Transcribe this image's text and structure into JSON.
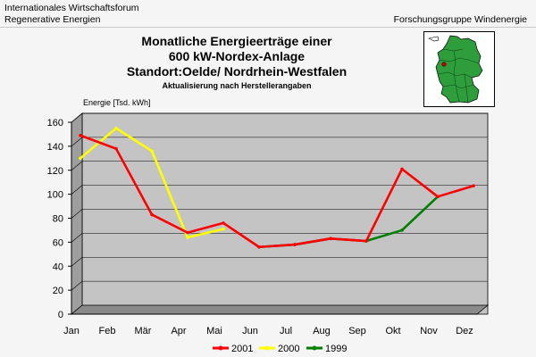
{
  "header": {
    "org_line1": "Internationales Wirtschaftsforum",
    "org_line2": "Regenerative Energien",
    "group": "Forschungsgruppe Windenergie"
  },
  "chart_data": {
    "type": "line",
    "title_lines": [
      "Monatliche Energieerträge einer",
      "600 kW-Nordex-Anlage",
      "Standort:Oelde/ Nordrhein-Westfalen"
    ],
    "subtitle": "Aktualisierung nach Herstellerangaben",
    "ylabel": "Energie [Tsd. kWh]",
    "xlabel": "",
    "ylim": [
      0,
      160
    ],
    "yticks": [
      0,
      20,
      40,
      60,
      80,
      100,
      120,
      140,
      160
    ],
    "categories": [
      "Jan",
      "Feb",
      "Mär",
      "Apr",
      "Mai",
      "Jun",
      "Jul",
      "Aug",
      "Sep",
      "Okt",
      "Nov",
      "Dez"
    ],
    "grid": true,
    "legend_position": "bottom",
    "series": [
      {
        "name": "2001",
        "color": "#ff0000",
        "values": [
          149,
          138,
          83,
          68,
          76,
          56,
          58,
          63,
          61,
          121,
          98,
          107
        ]
      },
      {
        "name": "2000",
        "color": "#ffff00",
        "values": [
          130,
          155,
          136,
          64,
          71,
          null,
          null,
          null,
          null,
          null,
          null,
          null
        ]
      },
      {
        "name": "1999",
        "color": "#008000",
        "values": [
          null,
          null,
          null,
          null,
          null,
          56,
          58,
          63,
          61,
          70,
          98,
          null
        ]
      }
    ]
  },
  "map_icon": "germany-map-icon"
}
